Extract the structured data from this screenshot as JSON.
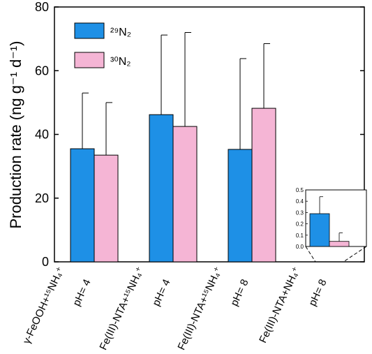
{
  "chart_data": {
    "type": "bar",
    "ylabel": "Production rate (ng g⁻¹ d⁻¹)",
    "ylim": [
      0,
      80
    ],
    "yticks": [
      "0",
      "20",
      "40",
      "60",
      "80"
    ],
    "categories": [
      {
        "line1": "γ-FeOOH+¹⁵NH₄⁺",
        "line2": "pH= 4"
      },
      {
        "line1": "Fe(III)-NTA+¹⁵NH₄⁺",
        "line2": "pH= 4"
      },
      {
        "line1": "Fe(III)-NTA+¹⁵NH₄⁺",
        "line2": "pH= 8"
      },
      {
        "line1": "Fe(III)-NTA+NH₄⁺",
        "line2": "pH= 8"
      }
    ],
    "series": [
      {
        "name": "²⁹N₂",
        "color": "#1e90e6",
        "values": [
          35.5,
          46.2,
          35.3,
          0.29
        ],
        "errors": [
          17.5,
          25.0,
          28.5,
          0.15
        ]
      },
      {
        "name": "³⁰N₂",
        "color": "#f5b5d5",
        "values": [
          33.5,
          42.5,
          48.2,
          0.045
        ],
        "errors": [
          16.5,
          29.5,
          20.3,
          0.075
        ]
      }
    ],
    "inset": {
      "category_index": 3,
      "ylim": [
        0,
        0.5
      ],
      "yticks": [
        "0.0",
        "0.1",
        "0.2",
        "0.3",
        "0.4",
        "0.5"
      ]
    },
    "legend_position": "top-left"
  }
}
